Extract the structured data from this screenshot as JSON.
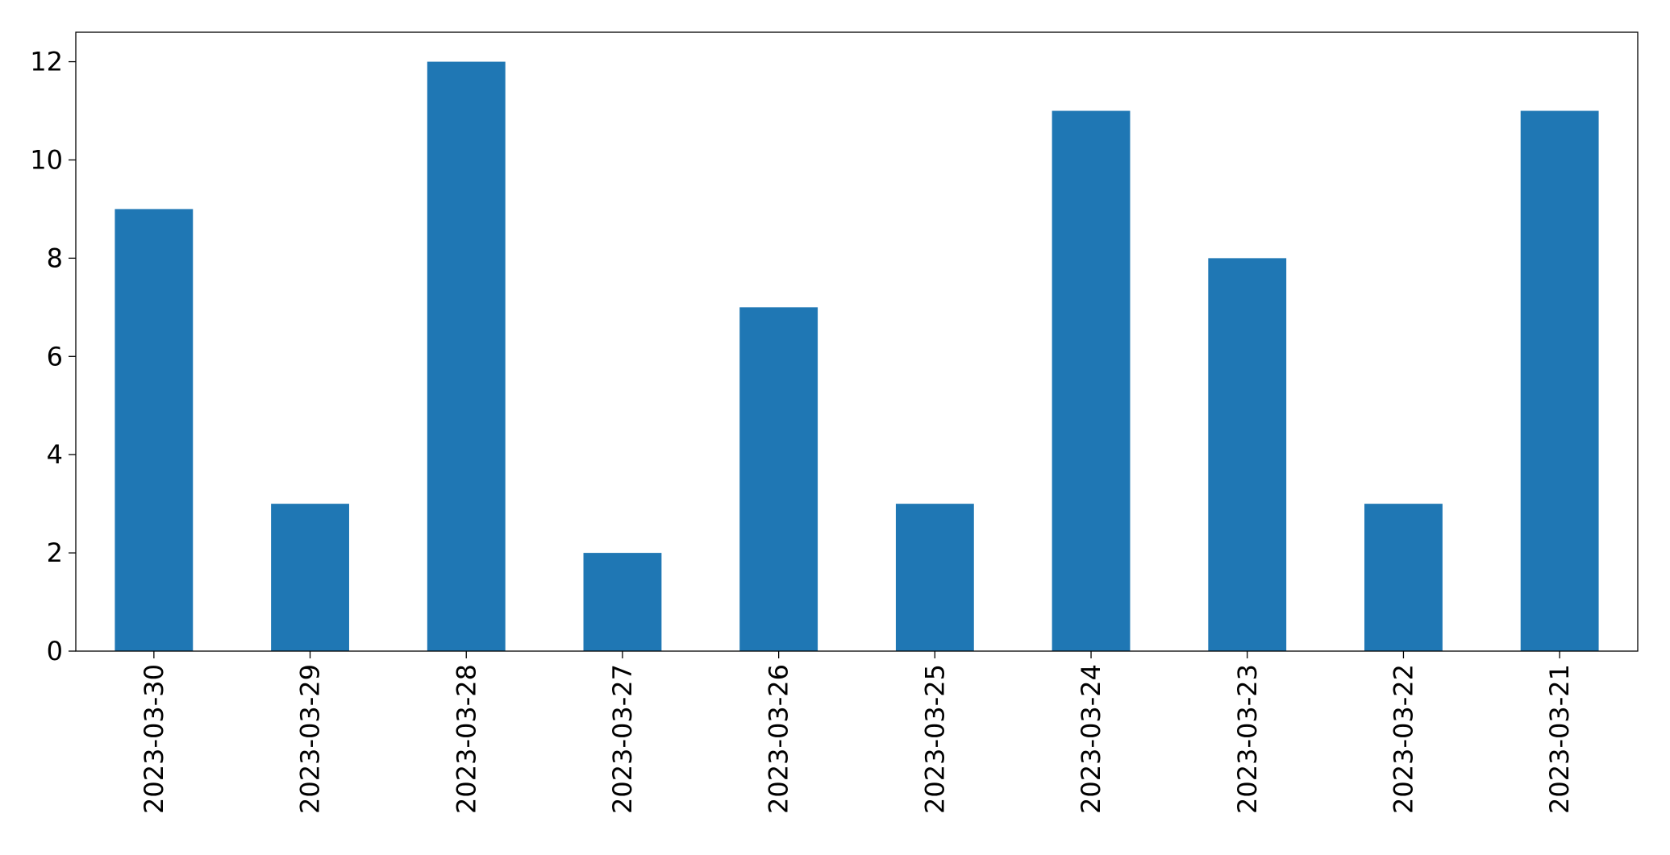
{
  "chart_data": {
    "type": "bar",
    "categories": [
      "2023-03-30",
      "2023-03-29",
      "2023-03-28",
      "2023-03-27",
      "2023-03-26",
      "2023-03-25",
      "2023-03-24",
      "2023-03-23",
      "2023-03-22",
      "2023-03-21"
    ],
    "values": [
      9,
      3,
      12,
      2,
      7,
      3,
      11,
      8,
      3,
      11
    ],
    "color": "#1f77b4",
    "ylim": [
      0,
      12.6
    ],
    "yticks": [
      0,
      2,
      4,
      6,
      8,
      10,
      12
    ],
    "grid": false
  }
}
